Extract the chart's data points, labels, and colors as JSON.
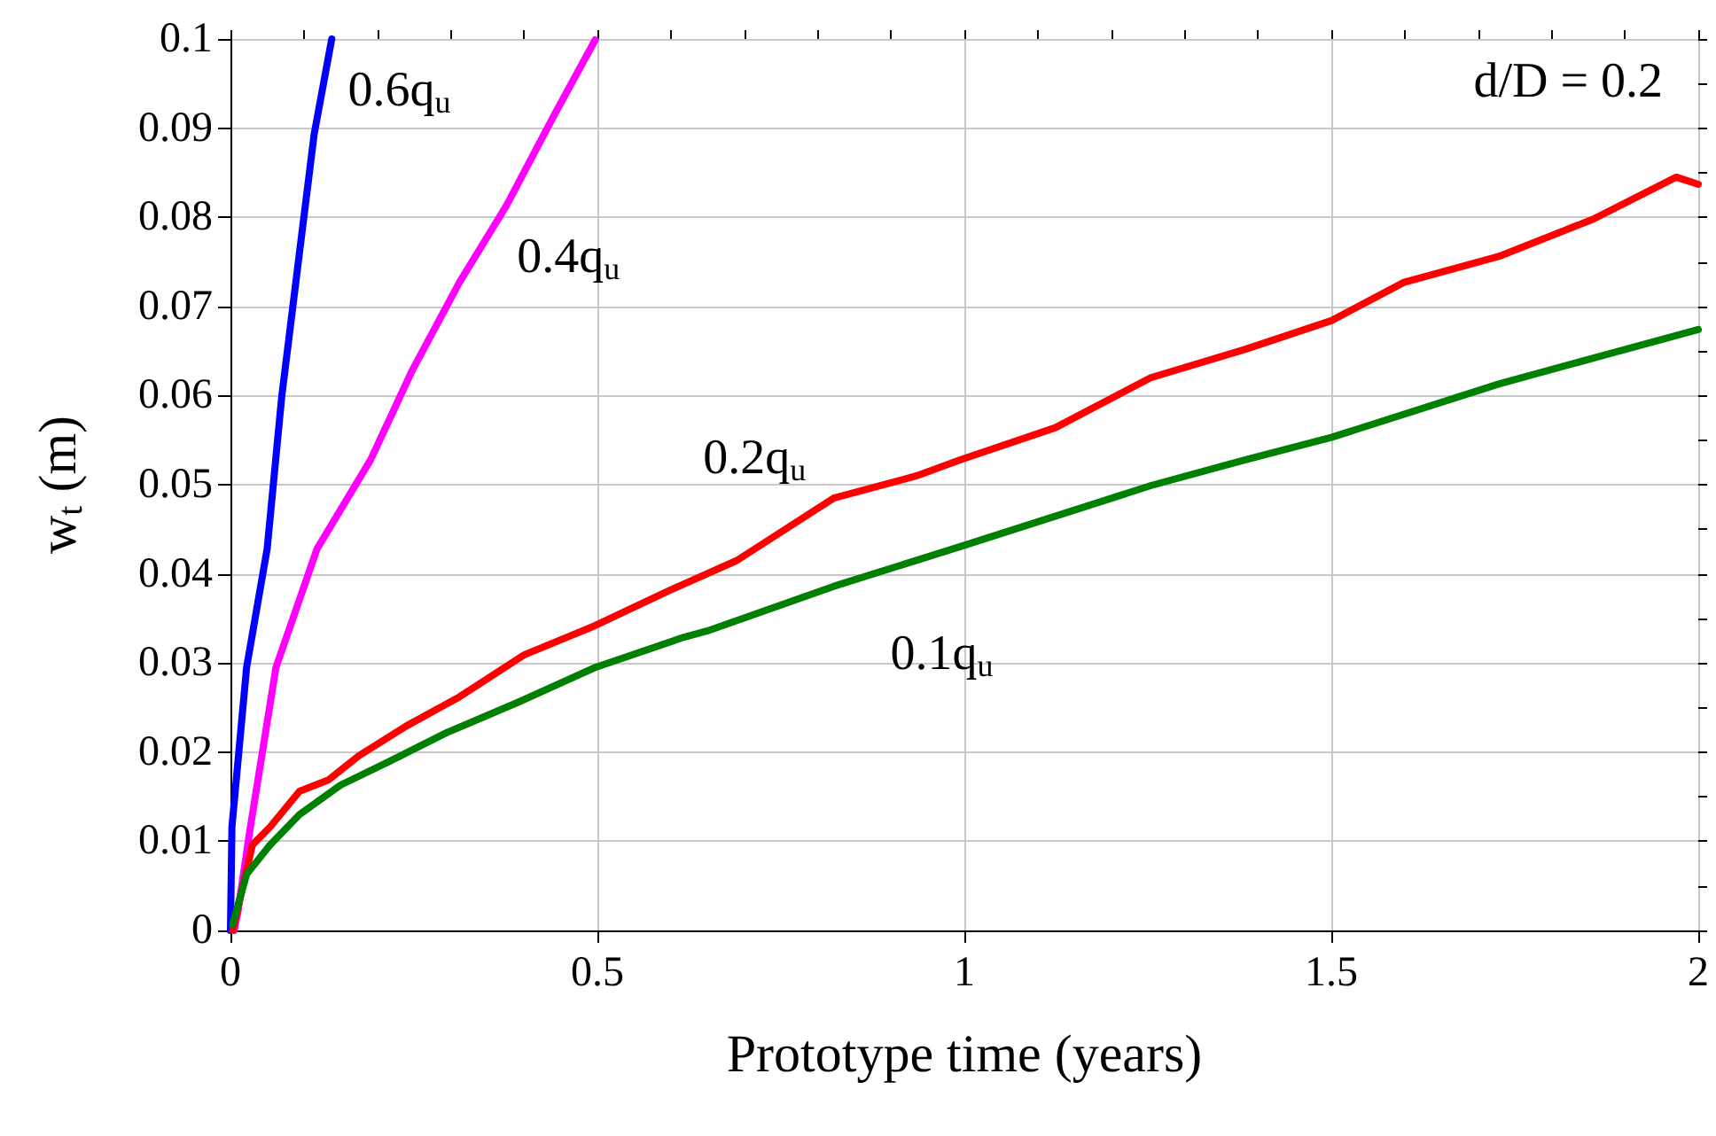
{
  "chart_data": {
    "type": "line",
    "xlabel": "Prototype time (years)",
    "ylabel": "w$_{t}$ (m)",
    "xlim": [
      0,
      2
    ],
    "ylim": [
      0,
      0.1
    ],
    "xticks": [
      0,
      {
        "value": 0.1,
        "label": null
      },
      {
        "value": 0.2,
        "label": null
      },
      {
        "value": 0.3,
        "label": null
      },
      {
        "value": 0.4,
        "label": null
      },
      0.5,
      {
        "value": 0.6,
        "label": null
      },
      {
        "value": 0.7,
        "label": null
      },
      {
        "value": 0.8,
        "label": null
      },
      {
        "value": 0.9,
        "label": null
      },
      1,
      {
        "value": 1.1,
        "label": null
      },
      {
        "value": 1.2,
        "label": null
      },
      {
        "value": 1.3,
        "label": null
      },
      {
        "value": 1.4,
        "label": null
      },
      1.5,
      {
        "value": 1.6,
        "label": null
      },
      {
        "value": 1.7,
        "label": null
      },
      {
        "value": 1.8,
        "label": null
      },
      {
        "value": 1.9,
        "label": null
      },
      2
    ],
    "yticks": [
      0,
      {
        "value": 0.005,
        "label": null
      },
      0.01,
      {
        "value": 0.015,
        "label": null
      },
      0.02,
      {
        "value": 0.025,
        "label": null
      },
      0.03,
      {
        "value": 0.035,
        "label": null
      },
      0.04,
      {
        "value": 0.045,
        "label": null
      },
      0.05,
      {
        "value": 0.055,
        "label": null
      },
      0.06,
      {
        "value": 0.065,
        "label": null
      },
      0.07,
      {
        "value": 0.075,
        "label": null
      },
      0.08,
      {
        "value": 0.085,
        "label": null
      },
      0.09,
      {
        "value": 0.095,
        "label": null
      },
      0.1
    ],
    "grid": true,
    "line_style": "solid",
    "series": [
      {
        "name": "0.6q$_{u}$",
        "color": "#0000ff",
        "x": [
          0,
          0.002,
          0.022,
          0.05,
          0.07,
          0.094,
          0.114,
          0.138
        ],
        "values": [
          0,
          0.0116,
          0.0295,
          0.0428,
          0.06,
          0.076,
          0.0893,
          0.1
        ]
      },
      {
        "name": "0.4q$_{u}$",
        "color": "#ff00ff",
        "x": [
          0.005,
          0.01,
          0.026,
          0.062,
          0.118,
          0.191,
          0.247,
          0.312,
          0.376,
          0.44,
          0.497
        ],
        "values": [
          0,
          0.002,
          0.011,
          0.0295,
          0.0428,
          0.0528,
          0.0627,
          0.0727,
          0.0813,
          0.0913,
          0.0999
        ]
      },
      {
        "name": "0.2q$_{u}$",
        "color": "#ff0000",
        "x": [
          0.003,
          0.03,
          0.054,
          0.094,
          0.134,
          0.175,
          0.239,
          0.312,
          0.4,
          0.497,
          0.6,
          0.69,
          0.822,
          0.935,
          0.995,
          1.124,
          1.254,
          1.383,
          1.5,
          1.599,
          1.728,
          1.857,
          1.97,
          2.0
        ],
        "values": [
          0,
          0.0096,
          0.0116,
          0.0156,
          0.0169,
          0.0196,
          0.0229,
          0.0262,
          0.0309,
          0.0342,
          0.0382,
          0.0415,
          0.0485,
          0.051,
          0.0528,
          0.0564,
          0.062,
          0.0652,
          0.0684,
          0.0727,
          0.0756,
          0.0798,
          0.0845,
          0.0837
        ]
      },
      {
        "name": "0.1q$_{u}$",
        "color": "#008000",
        "x": [
          0.003,
          0.022,
          0.054,
          0.094,
          0.15,
          0.215,
          0.295,
          0.392,
          0.497,
          0.618,
          0.65,
          0.822,
          1.0,
          1.254,
          1.383,
          1.5,
          1.728,
          1.857,
          2.0
        ],
        "values": [
          0.0007,
          0.0063,
          0.0096,
          0.013,
          0.0163,
          0.0189,
          0.0222,
          0.0256,
          0.0295,
          0.0329,
          0.0336,
          0.0386,
          0.0432,
          0.0499,
          0.0528,
          0.0553,
          0.0613,
          0.0642,
          0.0674
        ]
      }
    ],
    "annotations": [
      "d/D = 0.2"
    ]
  }
}
